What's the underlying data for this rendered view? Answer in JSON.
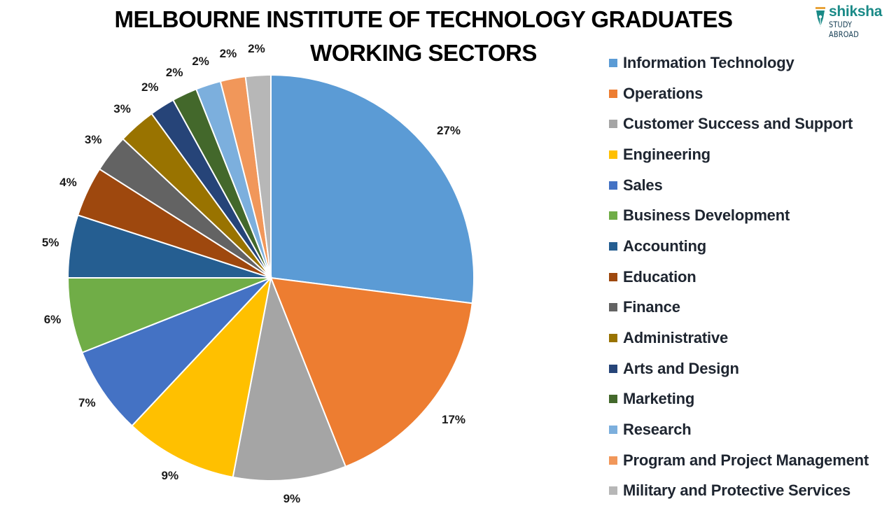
{
  "header": {
    "title_line1": "MELBOURNE INSTITUTE OF TECHNOLOGY GRADUATES",
    "title_line2": "WORKING SECTORS"
  },
  "logo": {
    "brand": "shiksha",
    "sub": "STUDY ABROAD",
    "brand_color": "#1a8a87"
  },
  "chart_data": {
    "type": "pie",
    "title": "MELBOURNE INSTITUTE OF TECHNOLOGY GRADUATES WORKING SECTORS",
    "categories": [
      "Information Technology",
      "Operations",
      "Customer Success and Support",
      "Engineering",
      "Sales",
      "Business Development",
      "Accounting",
      "Education",
      "Finance",
      "Administrative",
      "Arts and Design",
      "Marketing",
      "Research",
      "Program and Project Management",
      "Military and Protective Services"
    ],
    "values": [
      27,
      17,
      9,
      9,
      7,
      6,
      5,
      4,
      3,
      3,
      2,
      2,
      2,
      2,
      2
    ],
    "labels": [
      "27%",
      "17%",
      "9%",
      "9%",
      "7%",
      "6%",
      "5%",
      "4%",
      "3%",
      "3%",
      "2%",
      "2%",
      "2%",
      "2%",
      "2%"
    ],
    "colors": [
      "#5b9bd5",
      "#ed7d31",
      "#a5a5a5",
      "#ffc000",
      "#4472c4",
      "#70ad47",
      "#255e91",
      "#9e480e",
      "#636363",
      "#997300",
      "#264478",
      "#43682b",
      "#7cafdd",
      "#f1975a",
      "#b7b7b7"
    ],
    "unit": "%",
    "start_angle": "12 o'clock, clockwise",
    "legend_position": "right",
    "data_labels": "outside end"
  },
  "legend": {
    "items": [
      {
        "label": "Information Technology",
        "color": "#5b9bd5"
      },
      {
        "label": "Operations",
        "color": "#ed7d31"
      },
      {
        "label": "Customer Success and Support",
        "color": "#a5a5a5"
      },
      {
        "label": "Engineering",
        "color": "#ffc000"
      },
      {
        "label": "Sales",
        "color": "#4472c4"
      },
      {
        "label": "Business Development",
        "color": "#70ad47"
      },
      {
        "label": "Accounting",
        "color": "#255e91"
      },
      {
        "label": "Education",
        "color": "#9e480e"
      },
      {
        "label": "Finance",
        "color": "#636363"
      },
      {
        "label": "Administrative",
        "color": "#997300"
      },
      {
        "label": "Arts and Design",
        "color": "#264478"
      },
      {
        "label": "Marketing",
        "color": "#43682b"
      },
      {
        "label": "Research",
        "color": "#7cafdd"
      },
      {
        "label": "Program and Project Management",
        "color": "#f1975a"
      },
      {
        "label": "Military and Protective Services",
        "color": "#b7b7b7"
      }
    ]
  }
}
